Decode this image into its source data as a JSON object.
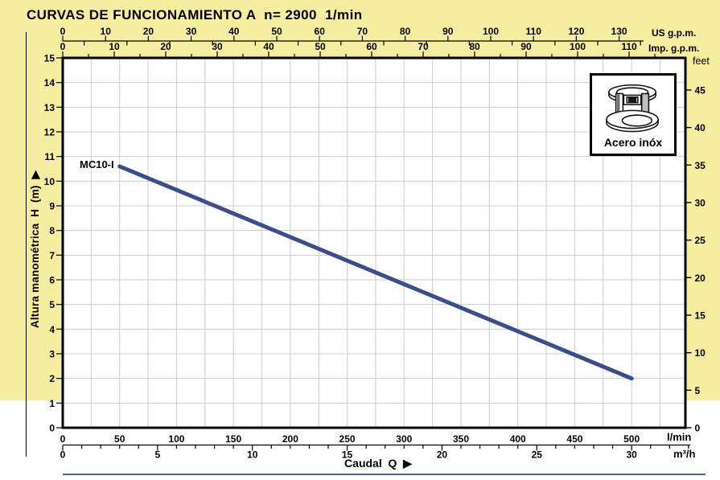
{
  "title": "CURVAS DE FUNCIONAMIENTO A  n= 2900  1/min",
  "inset": {
    "label": "Acero inóx"
  },
  "colors": {
    "background": "#F5EEA0",
    "curve": "#3A4E8C",
    "grid": "#CCCCCC",
    "plot_bg": "#FFFFFF",
    "footer_line": "#44688F",
    "ink": "#000000"
  },
  "chart_data": {
    "type": "line",
    "title": "CURVAS DE FUNCIONAMIENTO A  n= 2900  1/min",
    "xlabel": "Caudal  Q  ▶",
    "ylabel": "Altura manométrica  H  (m)  ▶",
    "grid": true,
    "xlim_lmin": [
      0,
      500
    ],
    "ylim_m": [
      0,
      15
    ],
    "series": [
      {
        "name": "MC10-I",
        "color": "#3A4E8C",
        "points": [
          {
            "q_lmin": 50,
            "h_m": 10.6
          },
          {
            "q_lmin": 500,
            "h_m": 2.0
          }
        ]
      }
    ],
    "axes": {
      "x_top_us_gpm": {
        "label": "US g.p.m.",
        "ticks": [
          0,
          10,
          20,
          30,
          40,
          50,
          60,
          70,
          80,
          90,
          100,
          110,
          120,
          130
        ],
        "minor_step": 5
      },
      "x_top_imp_gpm": {
        "label": "Imp. g.p.m.",
        "ticks": [
          0,
          10,
          20,
          30,
          40,
          50,
          60,
          70,
          80,
          90,
          100,
          110
        ],
        "minor_step": 5
      },
      "x_bottom_lmin": {
        "label": "l/min",
        "ticks": [
          0,
          50,
          100,
          150,
          200,
          250,
          300,
          350,
          400,
          450,
          500
        ]
      },
      "x_bottom_m3h": {
        "label": "m³/h",
        "ticks": [
          0,
          5,
          10,
          15,
          20,
          25,
          30
        ],
        "minor_step": 1
      },
      "y_left_m": {
        "label": "Altura manométrica H (m)",
        "ticks": [
          0,
          1,
          2,
          3,
          4,
          5,
          6,
          7,
          8,
          9,
          10,
          11,
          12,
          13,
          14,
          15
        ]
      },
      "y_right_feet": {
        "label": "feet",
        "ticks": [
          0,
          5,
          10,
          15,
          20,
          25,
          30,
          35,
          40,
          45
        ]
      }
    }
  }
}
